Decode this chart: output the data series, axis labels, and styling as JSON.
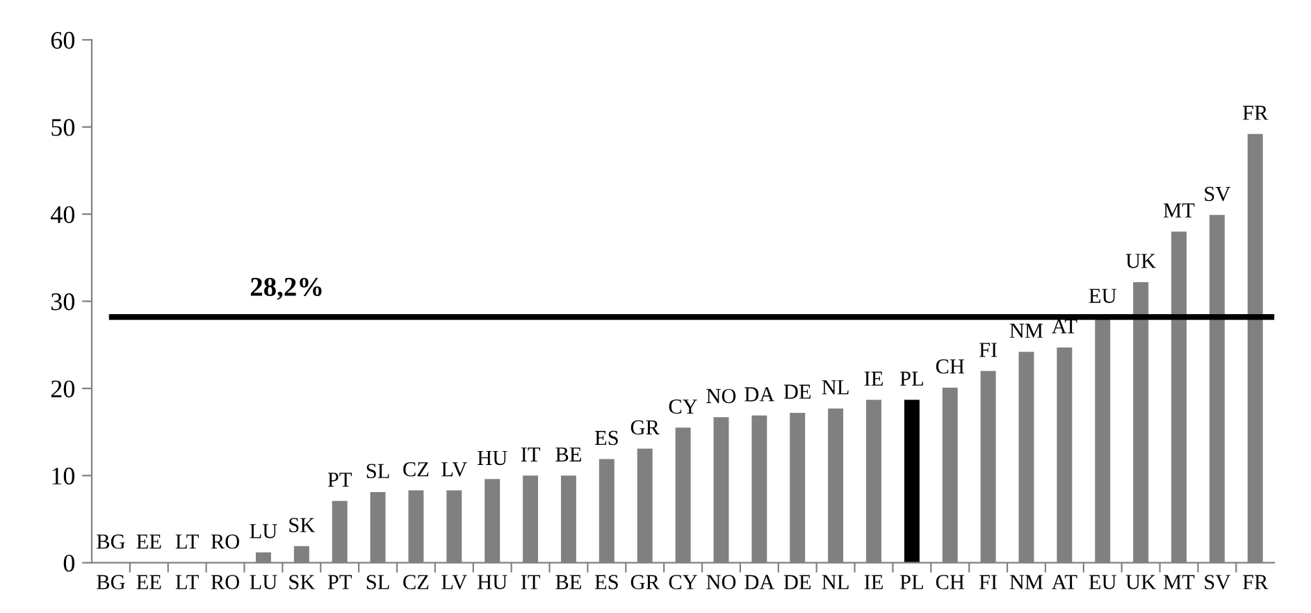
{
  "chart_data": {
    "type": "bar",
    "categories": [
      "BG",
      "EE",
      "LT",
      "RO",
      "LU",
      "SK",
      "PT",
      "SL",
      "CZ",
      "LV",
      "HU",
      "IT",
      "BE",
      "ES",
      "GR",
      "CY",
      "NO",
      "DA",
      "DE",
      "NL",
      "IE",
      "PL",
      "CH",
      "FI",
      "NM",
      "AT",
      "EU",
      "UK",
      "MT",
      "SV",
      "FR"
    ],
    "values": [
      0,
      0,
      0,
      0,
      1.2,
      1.9,
      7.1,
      8.1,
      8.3,
      8.3,
      9.6,
      10.0,
      10.0,
      11.9,
      13.1,
      15.5,
      16.7,
      16.9,
      17.2,
      17.7,
      18.7,
      18.7,
      20.1,
      22.0,
      24.2,
      24.7,
      28.2,
      32.2,
      38.0,
      39.9,
      49.2
    ],
    "colors": [
      "#808080",
      "#808080",
      "#808080",
      "#808080",
      "#808080",
      "#808080",
      "#808080",
      "#808080",
      "#808080",
      "#808080",
      "#808080",
      "#808080",
      "#808080",
      "#808080",
      "#808080",
      "#808080",
      "#808080",
      "#808080",
      "#808080",
      "#808080",
      "#808080",
      "#000000",
      "#808080",
      "#808080",
      "#808080",
      "#808080",
      "#808080",
      "#808080",
      "#808080",
      "#808080",
      "#808080"
    ],
    "ylim": [
      0,
      60
    ],
    "yticks": [
      0,
      10,
      20,
      30,
      40,
      50,
      60
    ],
    "grid": false,
    "legend": false,
    "ref_lines": [
      {
        "axis": "y",
        "value": 28.2,
        "label": "28,2%",
        "color": "#000000"
      }
    ],
    "annotations": [
      {
        "text": "BG",
        "x": "BG",
        "y": 0
      },
      {
        "text": "EE",
        "x": "EE",
        "y": 0
      },
      {
        "text": "LT",
        "x": "LT",
        "y": 0
      },
      {
        "text": "RO",
        "x": "RO",
        "y": 0
      },
      {
        "text": "LU",
        "x": "LU",
        "y": 1.2
      },
      {
        "text": "SK",
        "x": "SK",
        "y": 1.9
      },
      {
        "text": "PT",
        "x": "PT",
        "y": 7.1
      },
      {
        "text": "SL",
        "x": "SL",
        "y": 8.1
      },
      {
        "text": "CZ",
        "x": "CZ",
        "y": 8.3
      },
      {
        "text": "LV",
        "x": "LV",
        "y": 8.3
      },
      {
        "text": "HU",
        "x": "HU",
        "y": 9.6
      },
      {
        "text": "IT",
        "x": "IT",
        "y": 10.0
      },
      {
        "text": "BE",
        "x": "BE",
        "y": 10.0
      },
      {
        "text": "ES",
        "x": "ES",
        "y": 11.9
      },
      {
        "text": "GR",
        "x": "GR",
        "y": 13.1
      },
      {
        "text": "CY",
        "x": "CY",
        "y": 15.5
      },
      {
        "text": "NO",
        "x": "NO",
        "y": 16.7
      },
      {
        "text": "DA",
        "x": "DA",
        "y": 16.9
      },
      {
        "text": "DE",
        "x": "DE",
        "y": 17.2
      },
      {
        "text": "NL",
        "x": "NL",
        "y": 17.7
      },
      {
        "text": "IE",
        "x": "IE",
        "y": 18.7
      },
      {
        "text": "PL",
        "x": "PL",
        "y": 18.7
      },
      {
        "text": "CH",
        "x": "CH",
        "y": 20.1
      },
      {
        "text": "FI",
        "x": "FI",
        "y": 22.0
      },
      {
        "text": "NM",
        "x": "NM",
        "y": 24.2
      },
      {
        "text": "AT",
        "x": "AT",
        "y": 24.7
      },
      {
        "text": "EU",
        "x": "EU",
        "y": 28.2
      },
      {
        "text": "UK",
        "x": "UK",
        "y": 32.2
      },
      {
        "text": "MT",
        "x": "MT",
        "y": 38.0
      },
      {
        "text": "SV",
        "x": "SV",
        "y": 39.9
      },
      {
        "text": "FR",
        "x": "FR",
        "y": 49.2
      }
    ]
  }
}
